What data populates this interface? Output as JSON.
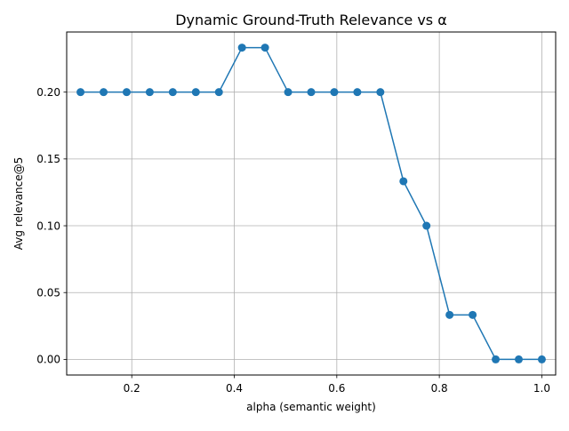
{
  "chart_data": {
    "type": "line",
    "title": "Dynamic Ground-Truth Relevance vs α",
    "xlabel": "alpha (semantic weight)",
    "ylabel": "Avg relevance@5",
    "xlim": [
      0.073,
      1.027
    ],
    "ylim": [
      -0.0117,
      0.245
    ],
    "x_ticks": [
      {
        "value": 0.2,
        "label": "0.2"
      },
      {
        "value": 0.4,
        "label": "0.4"
      },
      {
        "value": 0.6,
        "label": "0.6"
      },
      {
        "value": 0.8,
        "label": "0.8"
      },
      {
        "value": 1.0,
        "label": "1.0"
      }
    ],
    "y_ticks": [
      {
        "value": 0.0,
        "label": "0.00"
      },
      {
        "value": 0.05,
        "label": "0.05"
      },
      {
        "value": 0.1,
        "label": "0.10"
      },
      {
        "value": 0.15,
        "label": "0.15"
      },
      {
        "value": 0.2,
        "label": "0.20"
      }
    ],
    "grid": true,
    "color": "#1f77b4",
    "marker": "circle",
    "series": [
      {
        "x": [
          0.1,
          0.145,
          0.19,
          0.235,
          0.28,
          0.325,
          0.37,
          0.415,
          0.46,
          0.505,
          0.55,
          0.595,
          0.64,
          0.685,
          0.73,
          0.775,
          0.82,
          0.865,
          0.91,
          0.955,
          1.0
        ],
        "y": [
          0.2,
          0.2,
          0.2,
          0.2,
          0.2,
          0.2,
          0.2,
          0.2333,
          0.2333,
          0.2,
          0.2,
          0.2,
          0.2,
          0.2,
          0.1333,
          0.1,
          0.0333,
          0.0333,
          0.0,
          0.0,
          0.0
        ]
      }
    ]
  }
}
